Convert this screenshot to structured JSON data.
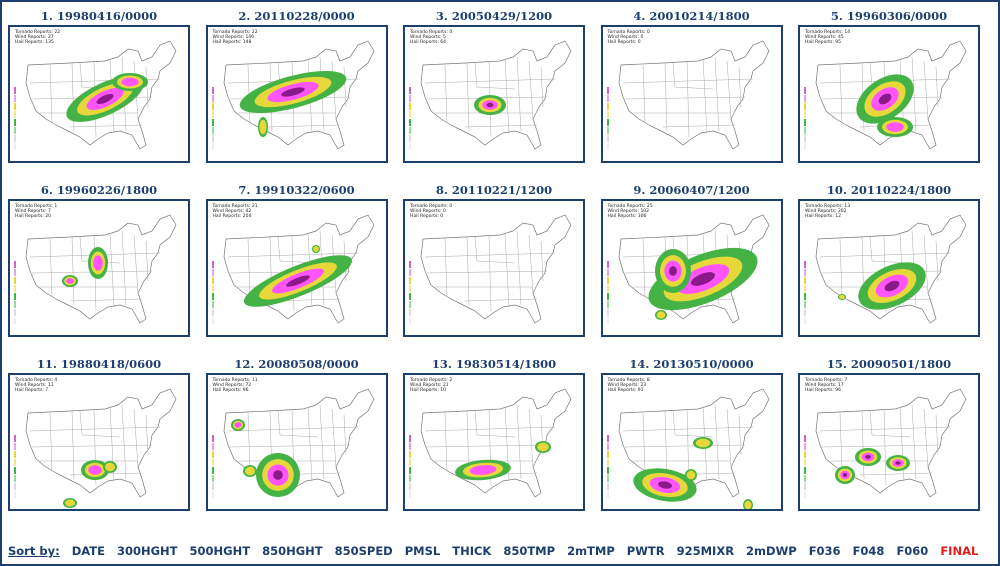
{
  "panels": [
    {
      "title": "1. 19980416/0000",
      "reports": {
        "tornado": "Tornado Reports: 22",
        "wind": "Wind Reports: 27",
        "hail": "Hail Reports: 135"
      },
      "blobs": [
        {
          "cx": 95,
          "cy": 72,
          "rx": 42,
          "ry": 16,
          "rot": -25,
          "lvl": 3
        },
        {
          "cx": 120,
          "cy": 55,
          "rx": 18,
          "ry": 9,
          "rot": 0,
          "lvl": 2
        }
      ]
    },
    {
      "title": "2. 20110228/0000",
      "reports": {
        "tornado": "Tornado Reports: 22",
        "wind": "Wind Reports: 146",
        "hail": "Hail Reports: 148"
      },
      "blobs": [
        {
          "cx": 85,
          "cy": 65,
          "rx": 55,
          "ry": 16,
          "rot": -15,
          "lvl": 3
        },
        {
          "cx": 55,
          "cy": 100,
          "rx": 5,
          "ry": 10,
          "rot": 0,
          "lvl": 1
        }
      ]
    },
    {
      "title": "3. 20050429/1200",
      "reports": {
        "tornado": "Tornado Reports: 0",
        "wind": "Wind Reports: 5",
        "hail": "Hail Reports: 64"
      },
      "blobs": [
        {
          "cx": 85,
          "cy": 78,
          "rx": 16,
          "ry": 10,
          "rot": 0,
          "lvl": 3
        }
      ]
    },
    {
      "title": "4. 20010214/1800",
      "reports": {
        "tornado": "Tornado Reports: 0",
        "wind": "Wind Reports: 0",
        "hail": "Hail Reports: 0"
      },
      "blobs": []
    },
    {
      "title": "5. 19960306/0000",
      "reports": {
        "tornado": "Tornado Reports: 14",
        "wind": "Wind Reports: 45",
        "hail": "Hail Reports: 95"
      },
      "blobs": [
        {
          "cx": 85,
          "cy": 72,
          "rx": 32,
          "ry": 20,
          "rot": -35,
          "lvl": 3
        },
        {
          "cx": 95,
          "cy": 100,
          "rx": 18,
          "ry": 10,
          "rot": 0,
          "lvl": 2
        }
      ]
    },
    {
      "title": "6. 19960226/1800",
      "reports": {
        "tornado": "Tornado Reports: 1",
        "wind": "Wind Reports: 7",
        "hail": "Hail Reports: 20"
      },
      "blobs": [
        {
          "cx": 88,
          "cy": 62,
          "rx": 10,
          "ry": 16,
          "rot": 0,
          "lvl": 2
        },
        {
          "cx": 60,
          "cy": 80,
          "rx": 8,
          "ry": 6,
          "rot": 0,
          "lvl": 2
        }
      ]
    },
    {
      "title": "7. 19910322/0600",
      "reports": {
        "tornado": "Tornado Reports: 21",
        "wind": "Wind Reports: 42",
        "hail": "Hail Reports: 204"
      },
      "blobs": [
        {
          "cx": 90,
          "cy": 80,
          "rx": 58,
          "ry": 15,
          "rot": -22,
          "lvl": 3
        },
        {
          "cx": 108,
          "cy": 48,
          "rx": 4,
          "ry": 4,
          "rot": 0,
          "lvl": 1
        }
      ]
    },
    {
      "title": "8. 20110221/1200",
      "reports": {
        "tornado": "Tornado Reports: 0",
        "wind": "Wind Reports: 0",
        "hail": "Hail Reports: 0"
      },
      "blobs": []
    },
    {
      "title": "9. 20060407/1200",
      "reports": {
        "tornado": "Tornado Reports: 25",
        "wind": "Wind Reports: 102",
        "hail": "Hail Reports: 306"
      },
      "blobs": [
        {
          "cx": 100,
          "cy": 78,
          "rx": 58,
          "ry": 24,
          "rot": -22,
          "lvl": 3
        },
        {
          "cx": 70,
          "cy": 70,
          "rx": 18,
          "ry": 22,
          "rot": 0,
          "lvl": 3
        },
        {
          "cx": 58,
          "cy": 114,
          "rx": 6,
          "ry": 5,
          "rot": 0,
          "lvl": 1
        }
      ]
    },
    {
      "title": "10. 20110224/1800",
      "reports": {
        "tornado": "Tornado Reports: 13",
        "wind": "Wind Reports: 202",
        "hail": "Hail Reports: 12"
      },
      "blobs": [
        {
          "cx": 92,
          "cy": 85,
          "rx": 36,
          "ry": 20,
          "rot": -25,
          "lvl": 3
        },
        {
          "cx": 42,
          "cy": 96,
          "rx": 4,
          "ry": 3,
          "rot": 0,
          "lvl": 1
        }
      ]
    },
    {
      "title": "11. 19880418/0600",
      "reports": {
        "tornado": "Tornado Reports: 4",
        "wind": "Wind Reports: 11",
        "hail": "Hail Reports: 7"
      },
      "blobs": [
        {
          "cx": 85,
          "cy": 95,
          "rx": 14,
          "ry": 10,
          "rot": 0,
          "lvl": 2
        },
        {
          "cx": 100,
          "cy": 92,
          "rx": 7,
          "ry": 6,
          "rot": 0,
          "lvl": 1
        },
        {
          "cx": 60,
          "cy": 128,
          "rx": 7,
          "ry": 5,
          "rot": 0,
          "lvl": 1
        }
      ]
    },
    {
      "title": "12. 20080508/0000",
      "reports": {
        "tornado": "Tornado Reports: 11",
        "wind": "Wind Reports: 72",
        "hail": "Hail Reports: 96"
      },
      "blobs": [
        {
          "cx": 70,
          "cy": 100,
          "rx": 22,
          "ry": 22,
          "rot": 0,
          "lvl": 3
        },
        {
          "cx": 30,
          "cy": 50,
          "rx": 7,
          "ry": 6,
          "rot": 0,
          "lvl": 2
        },
        {
          "cx": 42,
          "cy": 96,
          "rx": 7,
          "ry": 6,
          "rot": 0,
          "lvl": 1
        }
      ]
    },
    {
      "title": "13. 19830514/1800",
      "reports": {
        "tornado": "Tornado Reports: 2",
        "wind": "Wind Reports: 21",
        "hail": "Hail Reports: 10"
      },
      "blobs": [
        {
          "cx": 78,
          "cy": 95,
          "rx": 28,
          "ry": 10,
          "rot": -5,
          "lvl": 2
        },
        {
          "cx": 138,
          "cy": 72,
          "rx": 8,
          "ry": 6,
          "rot": 0,
          "lvl": 1
        }
      ]
    },
    {
      "title": "14. 20130510/0000",
      "reports": {
        "tornado": "Tornado Reports: 8",
        "wind": "Wind Reports: 23",
        "hail": "Hail Reports: 91"
      },
      "blobs": [
        {
          "cx": 62,
          "cy": 110,
          "rx": 32,
          "ry": 16,
          "rot": 10,
          "lvl": 3
        },
        {
          "cx": 100,
          "cy": 68,
          "rx": 10,
          "ry": 6,
          "rot": 0,
          "lvl": 1
        },
        {
          "cx": 88,
          "cy": 100,
          "rx": 6,
          "ry": 6,
          "rot": 0,
          "lvl": 1
        },
        {
          "cx": 145,
          "cy": 130,
          "rx": 5,
          "ry": 6,
          "rot": 0,
          "lvl": 1
        }
      ]
    },
    {
      "title": "15. 20090501/1800",
      "reports": {
        "tornado": "Tornado Reports: 7",
        "wind": "Wind Reports: 17",
        "hail": "Hail Reports: 96"
      },
      "blobs": [
        {
          "cx": 68,
          "cy": 82,
          "rx": 13,
          "ry": 9,
          "rot": 0,
          "lvl": 3
        },
        {
          "cx": 98,
          "cy": 88,
          "rx": 12,
          "ry": 8,
          "rot": 0,
          "lvl": 3
        },
        {
          "cx": 45,
          "cy": 100,
          "rx": 10,
          "ry": 9,
          "rot": 0,
          "lvl": 3
        }
      ]
    }
  ],
  "contour_colors": [
    "#44b244",
    "#e6d83a",
    "#ff55ff",
    "#8a1a8a"
  ],
  "sort": {
    "label": "Sort by:",
    "options": [
      "DATE",
      "300HGHT",
      "500HGHT",
      "850HGHT",
      "850SPED",
      "PMSL",
      "THICK",
      "850TMP",
      "2mTMP",
      "PWTR",
      "925MIXR",
      "2mDWP",
      "F036",
      "F048",
      "F060",
      "FINAL"
    ],
    "active": "FINAL"
  },
  "colors": {
    "frame": "#1c3f6e",
    "title": "#1c3f6e",
    "active": "#e41b1b"
  }
}
